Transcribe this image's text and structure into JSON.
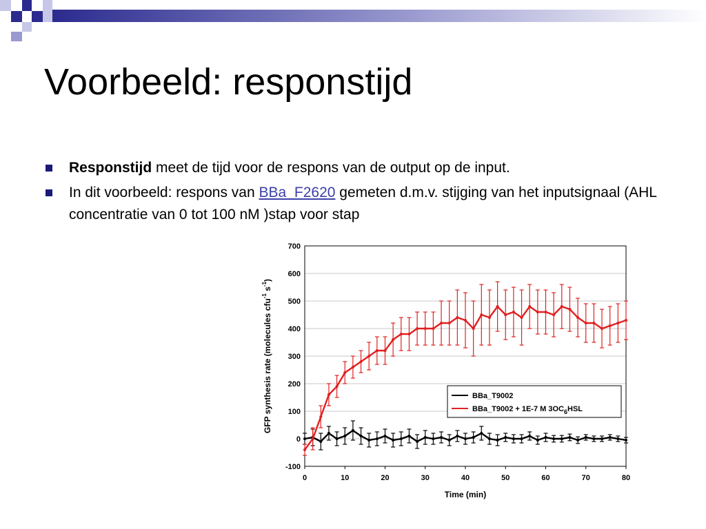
{
  "slide": {
    "title": "Voorbeeld: responstijd",
    "bullets": [
      {
        "bold": "Responstijd",
        "text": " meet de tijd voor de respons van de output op de input."
      },
      {
        "before": "In dit voorbeeld: respons van ",
        "link": "BBa_F2620",
        "after": " gemeten d.m.v. stijging van het inputsignaal (AHL concentratie van 0 tot 100 nM )stap voor stap"
      }
    ]
  },
  "colors": {
    "bullet": "#1a1a7a",
    "red_series": "#e02020",
    "black_series": "#000000",
    "grid": "#c8c8c8",
    "accent": "#3b3fa6"
  },
  "chart_data": {
    "type": "line",
    "xlabel": "Time (min)",
    "ylabel_main": "GFP synthesis rate (molecules cfu",
    "ylabel_sup1": "-1",
    "ylabel_mid": " s",
    "ylabel_sup2": "-1",
    "ylabel_end": ")",
    "xlim": [
      0,
      80
    ],
    "ylim": [
      -100,
      700
    ],
    "xticks": [
      "0",
      "10",
      "20",
      "30",
      "40",
      "50",
      "60",
      "70",
      "80"
    ],
    "yticks": [
      "-100",
      "0",
      "100",
      "200",
      "300",
      "400",
      "500",
      "600",
      "700"
    ],
    "grid": true,
    "legend_position": "lower-right",
    "legend": [
      {
        "label": "BBa_T9002",
        "color": "#000000"
      },
      {
        "label_main": "BBa_T9002 + 1E-7 M 3OC",
        "label_sub": "6",
        "label_end": "HSL",
        "color": "#e02020"
      }
    ],
    "series": [
      {
        "name": "BBa_T9002",
        "color": "#000000",
        "x": [
          0,
          2,
          4,
          6,
          8,
          10,
          12,
          14,
          16,
          18,
          20,
          22,
          24,
          26,
          28,
          30,
          32,
          34,
          36,
          38,
          40,
          42,
          44,
          46,
          48,
          50,
          52,
          54,
          56,
          58,
          60,
          62,
          64,
          66,
          68,
          70,
          72,
          74,
          76,
          78,
          80
        ],
        "y": [
          0,
          5,
          -10,
          20,
          0,
          10,
          30,
          10,
          -5,
          0,
          10,
          -5,
          0,
          10,
          -10,
          5,
          0,
          5,
          -5,
          10,
          0,
          5,
          20,
          0,
          -5,
          5,
          0,
          0,
          10,
          -5,
          5,
          0,
          0,
          5,
          -5,
          5,
          0,
          0,
          5,
          0,
          -5
        ],
        "err": [
          20,
          30,
          30,
          25,
          25,
          30,
          35,
          30,
          25,
          25,
          25,
          25,
          25,
          25,
          25,
          25,
          20,
          20,
          20,
          20,
          20,
          20,
          25,
          20,
          20,
          15,
          15,
          15,
          15,
          15,
          15,
          12,
          12,
          12,
          12,
          10,
          10,
          10,
          10,
          10,
          10
        ]
      },
      {
        "name": "BBa_T9002 + 1E-7 M 3OC6HSL",
        "color": "#e02020",
        "x": [
          0,
          2,
          4,
          6,
          8,
          10,
          12,
          14,
          16,
          18,
          20,
          22,
          24,
          26,
          28,
          30,
          32,
          34,
          36,
          38,
          40,
          42,
          44,
          46,
          48,
          50,
          52,
          54,
          56,
          58,
          60,
          62,
          64,
          66,
          68,
          70,
          72,
          74,
          76,
          78,
          80
        ],
        "y": [
          -40,
          0,
          80,
          160,
          190,
          240,
          260,
          280,
          300,
          320,
          320,
          360,
          380,
          380,
          400,
          400,
          400,
          420,
          420,
          440,
          430,
          400,
          450,
          440,
          480,
          450,
          460,
          440,
          480,
          460,
          460,
          450,
          480,
          470,
          440,
          420,
          420,
          400,
          410,
          420,
          430
        ],
        "err": [
          20,
          40,
          40,
          40,
          40,
          40,
          40,
          40,
          50,
          50,
          50,
          60,
          60,
          60,
          60,
          60,
          60,
          80,
          80,
          100,
          100,
          100,
          110,
          100,
          90,
          90,
          90,
          100,
          80,
          80,
          80,
          80,
          80,
          80,
          70,
          70,
          70,
          70,
          70,
          70,
          70
        ]
      }
    ]
  }
}
